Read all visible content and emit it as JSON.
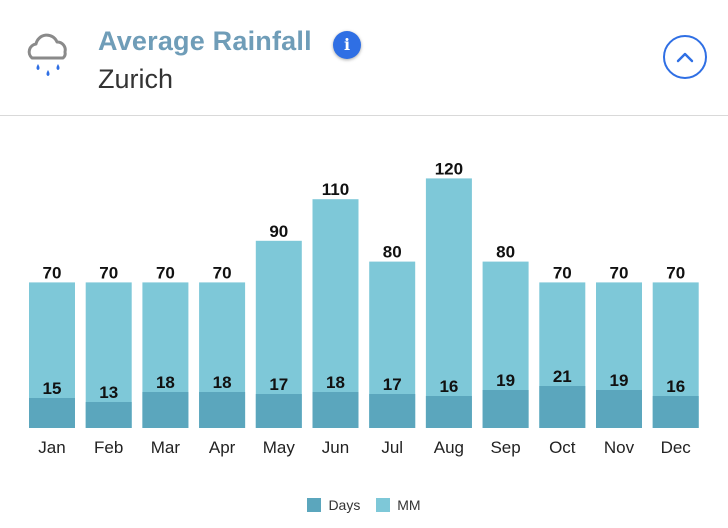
{
  "header": {
    "title": "Average Rainfall",
    "subtitle": "Zurich",
    "info_icon": "info-icon",
    "weather_icon": "rain-cloud-icon",
    "collapse_icon": "chevron-up-icon"
  },
  "colors": {
    "days": "#5ba6bd",
    "mm": "#7ec8d8",
    "title": "#6f9db8",
    "accent": "#2f6fe4"
  },
  "legend": {
    "days_label": "Days",
    "mm_label": "MM"
  },
  "chart_data": {
    "type": "bar",
    "categories": [
      "Jan",
      "Feb",
      "Mar",
      "Apr",
      "May",
      "Jun",
      "Jul",
      "Aug",
      "Sep",
      "Oct",
      "Nov",
      "Dec"
    ],
    "series": [
      {
        "name": "Days",
        "values": [
          15,
          13,
          18,
          18,
          17,
          18,
          17,
          16,
          19,
          21,
          19,
          16
        ]
      },
      {
        "name": "MM",
        "values": [
          70,
          70,
          70,
          70,
          90,
          110,
          80,
          120,
          80,
          70,
          70,
          70
        ]
      }
    ],
    "title": "Average Rainfall",
    "subtitle": "Zurich",
    "legend_position": "bottom",
    "grid": false,
    "ylim": [
      0,
      120
    ]
  }
}
